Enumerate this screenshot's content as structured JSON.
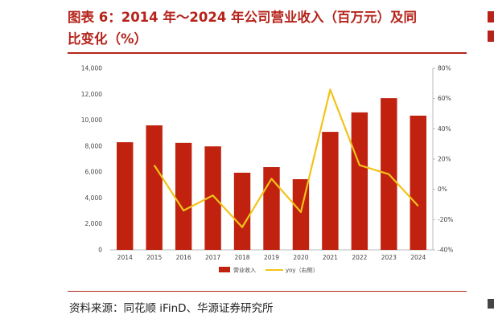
{
  "header": {
    "title_line1": "图表 6：2014 年～2024 年公司营业收入（百万元）及同",
    "title_line2": "比变化（%）"
  },
  "footer": {
    "source": "资料来源：同花顺 iFinD、华源证券研究所"
  },
  "chart_data": {
    "type": "bar",
    "categories": [
      "2014",
      "2015",
      "2016",
      "2017",
      "2018",
      "2019",
      "2020",
      "2021",
      "2022",
      "2023",
      "2024"
    ],
    "series": [
      {
        "name": "营业收入",
        "type": "bar",
        "axis": "left",
        "color": "#c0220f",
        "values": [
          8300,
          9600,
          8250,
          7980,
          5950,
          6380,
          5450,
          9100,
          10600,
          11700,
          10350
        ]
      },
      {
        "name": "yoy（右侧）",
        "type": "line",
        "axis": "right",
        "color": "#f2c318",
        "values": [
          null,
          16,
          -14,
          -4,
          -25,
          7,
          -15,
          66,
          16,
          10,
          -11
        ]
      }
    ],
    "left_axis": {
      "min": 0,
      "max": 14000,
      "ticks": [
        "0",
        "2,000",
        "4,000",
        "6,000",
        "8,000",
        "10,000",
        "12,000",
        "14,000"
      ]
    },
    "right_axis": {
      "min": -40,
      "max": 80,
      "ticks": [
        "-40%",
        "-20%",
        "0%",
        "20%",
        "40%",
        "60%",
        "80%"
      ]
    },
    "grid": false,
    "legend_position": "bottom"
  }
}
